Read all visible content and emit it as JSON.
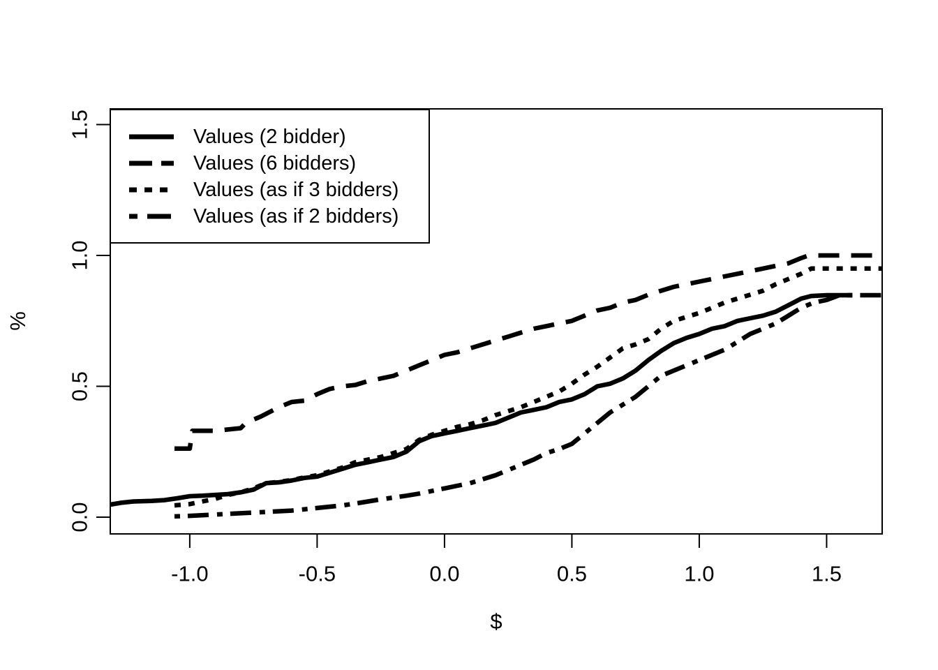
{
  "figure": {
    "background": "#ffffff",
    "line_color": "#000000"
  },
  "chart_data": {
    "type": "line",
    "title": "",
    "xlabel": "$",
    "ylabel": "%",
    "xlim": [
      -1.312,
      1.718
    ],
    "ylim": [
      -0.064,
      1.56
    ],
    "x_ticks": [
      -1.0,
      -0.5,
      0.0,
      0.5,
      1.0,
      1.5
    ],
    "x_tick_labels": [
      "-1.0",
      "-0.5",
      "0.0",
      "0.5",
      "1.0",
      "1.5"
    ],
    "y_ticks": [
      0.0,
      0.5,
      1.0,
      1.5
    ],
    "y_tick_labels": [
      "0.0",
      "0.5",
      "1.0",
      "1.5"
    ],
    "grid": false,
    "legend_position": "top-left",
    "series": [
      {
        "name": "Values (2 bidder)",
        "style": "solid",
        "points": [
          [
            -1.312,
            0.048
          ],
          [
            -1.27,
            0.055
          ],
          [
            -1.22,
            0.06
          ],
          [
            -1.15,
            0.062
          ],
          [
            -1.1,
            0.065
          ],
          [
            -1.05,
            0.072
          ],
          [
            -1.0,
            0.08
          ],
          [
            -0.95,
            0.082
          ],
          [
            -0.9,
            0.085
          ],
          [
            -0.85,
            0.088
          ],
          [
            -0.8,
            0.095
          ],
          [
            -0.75,
            0.105
          ],
          [
            -0.7,
            0.13
          ],
          [
            -0.65,
            0.133
          ],
          [
            -0.6,
            0.14
          ],
          [
            -0.55,
            0.15
          ],
          [
            -0.5,
            0.155
          ],
          [
            -0.45,
            0.17
          ],
          [
            -0.4,
            0.185
          ],
          [
            -0.35,
            0.2
          ],
          [
            -0.3,
            0.21
          ],
          [
            -0.25,
            0.22
          ],
          [
            -0.2,
            0.23
          ],
          [
            -0.15,
            0.25
          ],
          [
            -0.1,
            0.29
          ],
          [
            -0.05,
            0.31
          ],
          [
            0.0,
            0.32
          ],
          [
            0.05,
            0.33
          ],
          [
            0.1,
            0.34
          ],
          [
            0.15,
            0.35
          ],
          [
            0.2,
            0.36
          ],
          [
            0.25,
            0.38
          ],
          [
            0.3,
            0.4
          ],
          [
            0.35,
            0.41
          ],
          [
            0.4,
            0.42
          ],
          [
            0.45,
            0.44
          ],
          [
            0.5,
            0.45
          ],
          [
            0.55,
            0.47
          ],
          [
            0.6,
            0.5
          ],
          [
            0.65,
            0.51
          ],
          [
            0.7,
            0.53
          ],
          [
            0.75,
            0.56
          ],
          [
            0.8,
            0.6
          ],
          [
            0.85,
            0.635
          ],
          [
            0.9,
            0.665
          ],
          [
            0.95,
            0.685
          ],
          [
            1.0,
            0.7
          ],
          [
            1.05,
            0.72
          ],
          [
            1.1,
            0.73
          ],
          [
            1.15,
            0.75
          ],
          [
            1.2,
            0.76
          ],
          [
            1.25,
            0.77
          ],
          [
            1.3,
            0.785
          ],
          [
            1.35,
            0.81
          ],
          [
            1.4,
            0.835
          ],
          [
            1.44,
            0.845
          ],
          [
            1.5,
            0.848
          ],
          [
            1.6,
            0.848
          ]
        ]
      },
      {
        "name": "Values (6 bidders)",
        "style": "dashed",
        "points": [
          [
            -1.06,
            0.262
          ],
          [
            -1.0,
            0.262
          ],
          [
            -0.99,
            0.33
          ],
          [
            -0.9,
            0.33
          ],
          [
            -0.85,
            0.335
          ],
          [
            -0.8,
            0.34
          ],
          [
            -0.78,
            0.36
          ],
          [
            -0.72,
            0.385
          ],
          [
            -0.65,
            0.42
          ],
          [
            -0.6,
            0.44
          ],
          [
            -0.55,
            0.445
          ],
          [
            -0.5,
            0.47
          ],
          [
            -0.45,
            0.49
          ],
          [
            -0.4,
            0.5
          ],
          [
            -0.35,
            0.505
          ],
          [
            -0.3,
            0.52
          ],
          [
            -0.25,
            0.53
          ],
          [
            -0.2,
            0.54
          ],
          [
            -0.15,
            0.56
          ],
          [
            -0.1,
            0.58
          ],
          [
            -0.05,
            0.6
          ],
          [
            0.0,
            0.62
          ],
          [
            0.05,
            0.63
          ],
          [
            0.1,
            0.645
          ],
          [
            0.15,
            0.66
          ],
          [
            0.2,
            0.675
          ],
          [
            0.25,
            0.69
          ],
          [
            0.3,
            0.705
          ],
          [
            0.35,
            0.72
          ],
          [
            0.4,
            0.73
          ],
          [
            0.45,
            0.74
          ],
          [
            0.5,
            0.75
          ],
          [
            0.55,
            0.77
          ],
          [
            0.6,
            0.79
          ],
          [
            0.65,
            0.8
          ],
          [
            0.7,
            0.82
          ],
          [
            0.75,
            0.83
          ],
          [
            0.8,
            0.85
          ],
          [
            0.85,
            0.865
          ],
          [
            0.9,
            0.88
          ],
          [
            0.95,
            0.89
          ],
          [
            1.0,
            0.9
          ],
          [
            1.05,
            0.91
          ],
          [
            1.1,
            0.92
          ],
          [
            1.15,
            0.93
          ],
          [
            1.2,
            0.94
          ],
          [
            1.25,
            0.95
          ],
          [
            1.3,
            0.96
          ],
          [
            1.35,
            0.97
          ],
          [
            1.4,
            0.99
          ],
          [
            1.43,
            1.0
          ],
          [
            1.718,
            1.0
          ]
        ]
      },
      {
        "name": "Values (as if 3 bidders)",
        "style": "dotted",
        "points": [
          [
            -1.06,
            0.045
          ],
          [
            -1.0,
            0.05
          ],
          [
            -0.95,
            0.06
          ],
          [
            -0.9,
            0.07
          ],
          [
            -0.85,
            0.085
          ],
          [
            -0.8,
            0.095
          ],
          [
            -0.75,
            0.11
          ],
          [
            -0.7,
            0.13
          ],
          [
            -0.65,
            0.135
          ],
          [
            -0.6,
            0.142
          ],
          [
            -0.55,
            0.152
          ],
          [
            -0.5,
            0.16
          ],
          [
            -0.45,
            0.175
          ],
          [
            -0.4,
            0.19
          ],
          [
            -0.35,
            0.21
          ],
          [
            -0.3,
            0.22
          ],
          [
            -0.25,
            0.23
          ],
          [
            -0.2,
            0.245
          ],
          [
            -0.15,
            0.26
          ],
          [
            -0.1,
            0.295
          ],
          [
            -0.05,
            0.315
          ],
          [
            0.0,
            0.33
          ],
          [
            0.05,
            0.345
          ],
          [
            0.1,
            0.355
          ],
          [
            0.15,
            0.37
          ],
          [
            0.2,
            0.39
          ],
          [
            0.25,
            0.405
          ],
          [
            0.3,
            0.42
          ],
          [
            0.35,
            0.44
          ],
          [
            0.4,
            0.46
          ],
          [
            0.45,
            0.48
          ],
          [
            0.5,
            0.51
          ],
          [
            0.55,
            0.545
          ],
          [
            0.6,
            0.575
          ],
          [
            0.65,
            0.61
          ],
          [
            0.7,
            0.645
          ],
          [
            0.75,
            0.66
          ],
          [
            0.8,
            0.68
          ],
          [
            0.85,
            0.72
          ],
          [
            0.9,
            0.75
          ],
          [
            0.95,
            0.765
          ],
          [
            1.0,
            0.78
          ],
          [
            1.05,
            0.8
          ],
          [
            1.1,
            0.82
          ],
          [
            1.15,
            0.835
          ],
          [
            1.2,
            0.85
          ],
          [
            1.25,
            0.865
          ],
          [
            1.3,
            0.89
          ],
          [
            1.35,
            0.91
          ],
          [
            1.4,
            0.93
          ],
          [
            1.44,
            0.95
          ],
          [
            1.718,
            0.95
          ]
        ]
      },
      {
        "name": "Values (as if 2 bidders)",
        "style": "dashdot",
        "points": [
          [
            -1.06,
            0.003
          ],
          [
            -1.0,
            0.005
          ],
          [
            -0.9,
            0.01
          ],
          [
            -0.8,
            0.015
          ],
          [
            -0.7,
            0.02
          ],
          [
            -0.6,
            0.025
          ],
          [
            -0.5,
            0.035
          ],
          [
            -0.45,
            0.04
          ],
          [
            -0.4,
            0.045
          ],
          [
            -0.35,
            0.052
          ],
          [
            -0.3,
            0.06
          ],
          [
            -0.25,
            0.068
          ],
          [
            -0.2,
            0.075
          ],
          [
            -0.15,
            0.082
          ],
          [
            -0.1,
            0.09
          ],
          [
            -0.05,
            0.1
          ],
          [
            0.0,
            0.11
          ],
          [
            0.05,
            0.12
          ],
          [
            0.1,
            0.13
          ],
          [
            0.15,
            0.145
          ],
          [
            0.2,
            0.16
          ],
          [
            0.25,
            0.18
          ],
          [
            0.3,
            0.2
          ],
          [
            0.35,
            0.22
          ],
          [
            0.4,
            0.245
          ],
          [
            0.45,
            0.26
          ],
          [
            0.5,
            0.28
          ],
          [
            0.55,
            0.32
          ],
          [
            0.6,
            0.36
          ],
          [
            0.65,
            0.4
          ],
          [
            0.7,
            0.43
          ],
          [
            0.75,
            0.46
          ],
          [
            0.8,
            0.5
          ],
          [
            0.85,
            0.54
          ],
          [
            0.9,
            0.56
          ],
          [
            0.95,
            0.58
          ],
          [
            1.0,
            0.6
          ],
          [
            1.05,
            0.62
          ],
          [
            1.1,
            0.64
          ],
          [
            1.15,
            0.67
          ],
          [
            1.2,
            0.7
          ],
          [
            1.25,
            0.72
          ],
          [
            1.3,
            0.74
          ],
          [
            1.35,
            0.77
          ],
          [
            1.4,
            0.8
          ],
          [
            1.45,
            0.82
          ],
          [
            1.5,
            0.83
          ],
          [
            1.55,
            0.848
          ],
          [
            1.718,
            0.848
          ]
        ]
      }
    ]
  }
}
